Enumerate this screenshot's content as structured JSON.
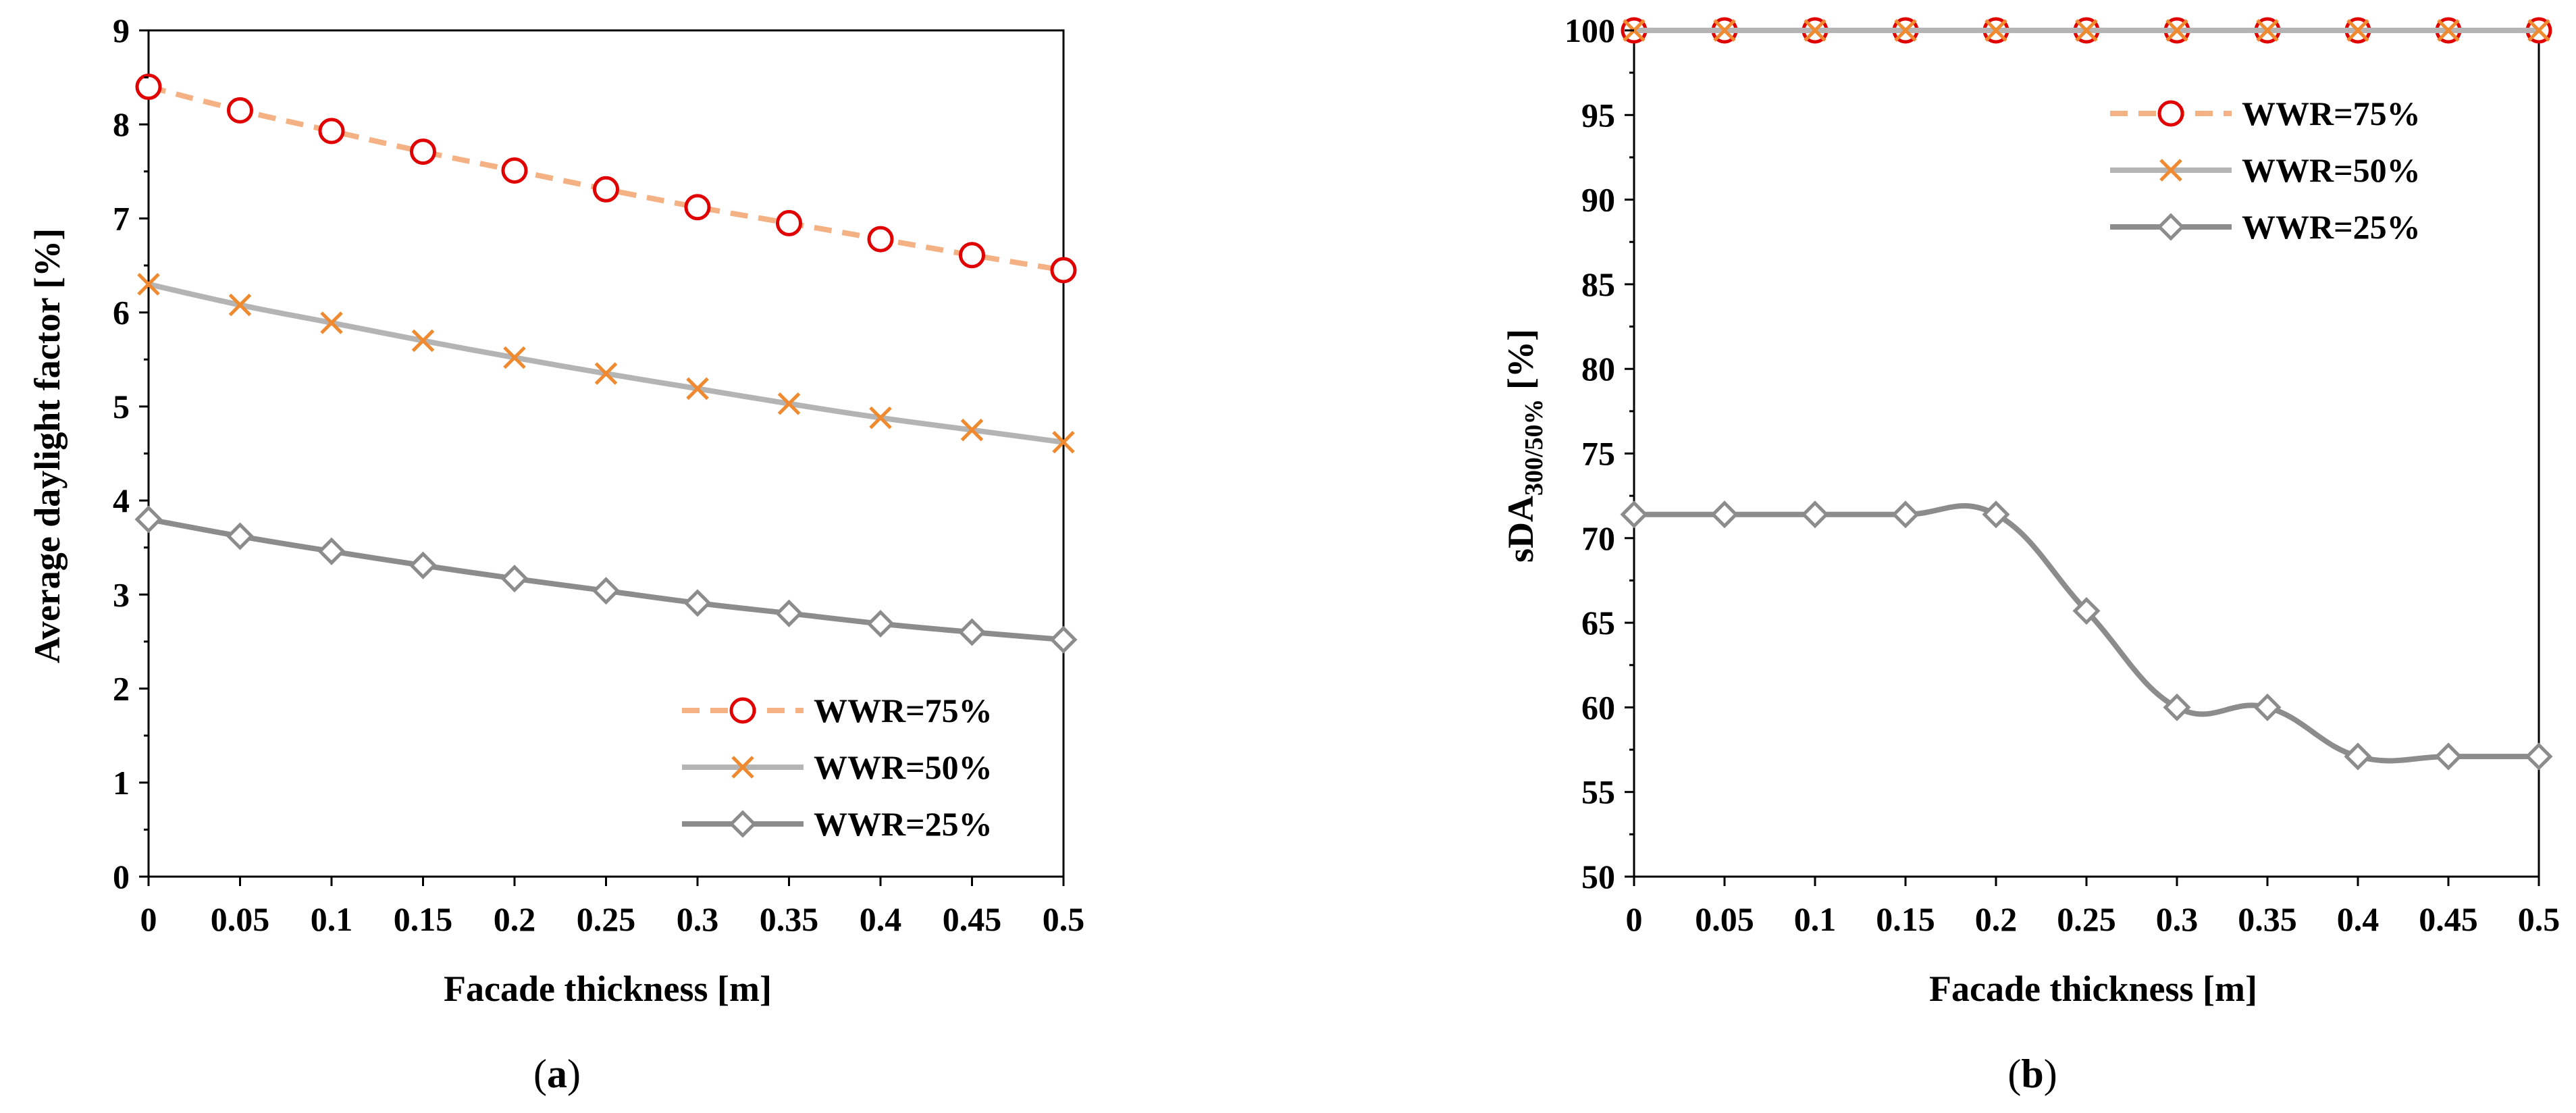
{
  "chart_data": [
    {
      "type": "line",
      "caption_open": "(",
      "caption_letter": "a",
      "caption_close": ")",
      "xlabel": "Facade thickness [m]",
      "ylabel": "Average daylight factor [%]",
      "ylim": [
        0,
        9
      ],
      "ytick_labels": [
        "0",
        "1",
        "2",
        "3",
        "4",
        "5",
        "6",
        "7",
        "8",
        "9"
      ],
      "categories": [
        "0",
        "0.05",
        "0.1",
        "0.15",
        "0.2",
        "0.25",
        "0.3",
        "0.35",
        "0.4",
        "0.45",
        "0.5"
      ],
      "legend_position": "bottom-right",
      "series": [
        {
          "name": "WWR=75%",
          "marker": "circle",
          "color": "#f4b183",
          "marker_color": "#e00000",
          "dash": true,
          "values": [
            8.4,
            8.15,
            7.93,
            7.71,
            7.51,
            7.31,
            7.12,
            6.95,
            6.78,
            6.61,
            6.45
          ]
        },
        {
          "name": "WWR=50%",
          "marker": "x",
          "color": "#b4b4b4",
          "marker_color": "#f08a30",
          "dash": false,
          "values": [
            6.3,
            6.08,
            5.89,
            5.7,
            5.52,
            5.35,
            5.19,
            5.03,
            4.88,
            4.75,
            4.62
          ]
        },
        {
          "name": "WWR=25%",
          "marker": "diamond",
          "color": "#8c8c8c",
          "marker_color": "#8c8c8c",
          "dash": false,
          "values": [
            3.8,
            3.62,
            3.46,
            3.31,
            3.17,
            3.04,
            2.91,
            2.8,
            2.69,
            2.6,
            2.52
          ]
        }
      ]
    },
    {
      "type": "line",
      "caption_open": "(",
      "caption_letter": "b",
      "caption_close": ")",
      "xlabel": "Facade thickness [m]",
      "ylabel_main": "sDA",
      "ylabel_sub": "300/50%",
      "ylabel_unit": " [%]",
      "ylim": [
        50,
        100
      ],
      "ytick_labels": [
        "50",
        "55",
        "60",
        "65",
        "70",
        "75",
        "80",
        "85",
        "90",
        "95",
        "100"
      ],
      "categories": [
        "0",
        "0.05",
        "0.1",
        "0.15",
        "0.2",
        "0.25",
        "0.3",
        "0.35",
        "0.4",
        "0.45",
        "0.5"
      ],
      "legend_position": "top-right",
      "series": [
        {
          "name": "WWR=75%",
          "marker": "circle",
          "color": "#f4b183",
          "marker_color": "#e00000",
          "dash": true,
          "values": [
            100,
            100,
            100,
            100,
            100,
            100,
            100,
            100,
            100,
            100,
            100
          ]
        },
        {
          "name": "WWR=50%",
          "marker": "x",
          "color": "#b4b4b4",
          "marker_color": "#f08a30",
          "dash": false,
          "values": [
            100,
            100,
            100,
            100,
            100,
            100,
            100,
            100,
            100,
            100,
            100
          ]
        },
        {
          "name": "WWR=25%",
          "marker": "diamond",
          "color": "#8c8c8c",
          "marker_color": "#8c8c8c",
          "dash": false,
          "values": [
            71.4,
            71.4,
            71.4,
            71.4,
            71.4,
            65.7,
            60.0,
            60.0,
            57.1,
            57.1,
            57.1
          ]
        }
      ]
    }
  ]
}
